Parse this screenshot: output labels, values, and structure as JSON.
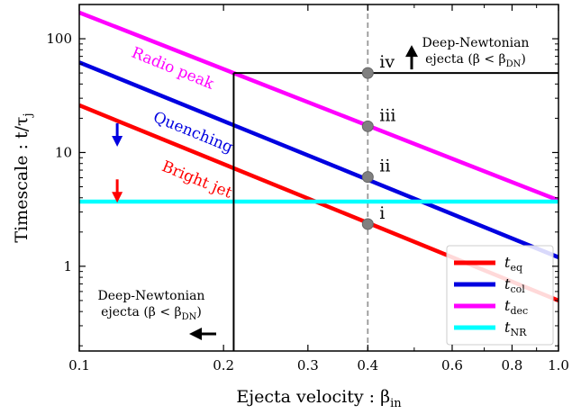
{
  "chart_data": {
    "type": "line",
    "xscale": "log",
    "yscale": "log",
    "xlim": [
      0.1,
      1.0
    ],
    "ylim": [
      0.18,
      200
    ],
    "xlabel": "Ejecta velocity : β",
    "xlabel_sub": "in",
    "ylabel": "Timescale : t/τ",
    "ylabel_sub": "j",
    "xticks": [
      {
        "value": 0.1,
        "label": "0.1"
      },
      {
        "value": 0.2,
        "label": "0.2"
      },
      {
        "value": 0.3,
        "label": "0.3"
      },
      {
        "value": 0.4,
        "label": "0.4"
      },
      {
        "value": 0.6,
        "label": "0.6"
      },
      {
        "value": 0.8,
        "label": "0.8"
      },
      {
        "value": 1.0,
        "label": "1.0"
      }
    ],
    "yticks": [
      {
        "value": 1,
        "label": "1"
      },
      {
        "value": 10,
        "label": "10"
      },
      {
        "value": 100,
        "label": "100"
      }
    ],
    "series": [
      {
        "name": "t",
        "sub": "eq",
        "color": "#ff0000",
        "x": [
          0.1,
          1.0
        ],
        "y": [
          26,
          0.5
        ]
      },
      {
        "name": "t",
        "sub": "col",
        "color": "#0000e0",
        "x": [
          0.1,
          1.0
        ],
        "y": [
          62,
          1.2
        ]
      },
      {
        "name": "t",
        "sub": "dec",
        "color": "#ff00ff",
        "x": [
          0.1,
          1.0
        ],
        "y": [
          170,
          3.8
        ]
      },
      {
        "name": "t",
        "sub": "NR",
        "color": "#00ffff",
        "x": [
          0.1,
          1.0
        ],
        "y": [
          3.7,
          3.7
        ]
      }
    ],
    "reference_lines": [
      {
        "kind": "vertical-dashed",
        "x": 0.4,
        "color": "#999999"
      },
      {
        "kind": "vertical",
        "x": 0.21,
        "y_range": [
          0.18,
          50
        ],
        "color": "#000000"
      },
      {
        "kind": "horizontal",
        "y": 50,
        "x_range": [
          0.21,
          1.0
        ],
        "color": "#000000"
      }
    ],
    "markers": [
      {
        "label": "i",
        "x": 0.4,
        "y": 2.35
      },
      {
        "label": "ii",
        "x": 0.4,
        "y": 6.1
      },
      {
        "label": "iii",
        "x": 0.4,
        "y": 17
      },
      {
        "label": "iv",
        "x": 0.4,
        "y": 50
      }
    ],
    "curve_labels": [
      {
        "text": "Radio peak",
        "color": "#ff00ff",
        "x": 0.128,
        "y": 70
      },
      {
        "text": "Quenching",
        "color": "#0000e0",
        "x": 0.142,
        "y": 19
      },
      {
        "text": "Bright jet",
        "color": "#ff0000",
        "x": 0.148,
        "y": 7
      }
    ],
    "annotations": [
      {
        "line1": "Deep-Newtonian",
        "line2": "ejecta (β < β",
        "line2_sub": "DN",
        "line2_end": ")",
        "position": "top-right",
        "arrow": "up"
      },
      {
        "line1": "Deep-Newtonian",
        "line2": "ejecta (β < β",
        "line2_sub": "DN",
        "line2_end": ")",
        "position": "bottom-left",
        "arrow": "left"
      }
    ],
    "legend": {
      "position": "bottom-right"
    },
    "grid": false
  }
}
